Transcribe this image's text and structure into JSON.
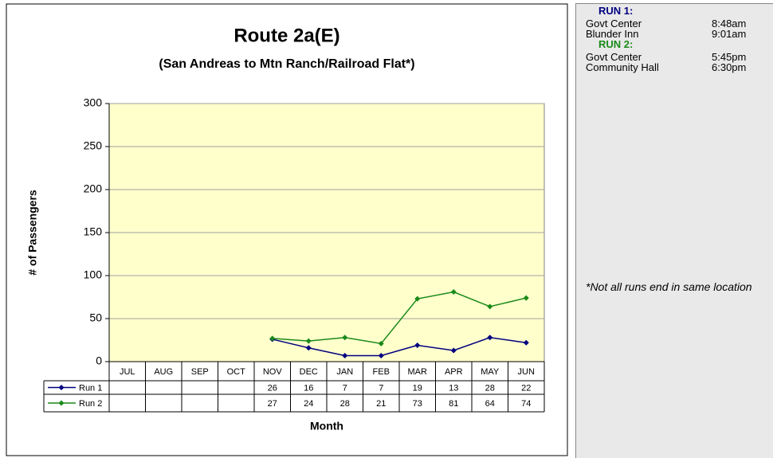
{
  "chart_data": {
    "type": "line",
    "title": "Route 2a(E)",
    "subtitle": "(San Andreas to Mtn Ranch/Railroad Flat*)",
    "y_label": "# of Passengers",
    "x_label": "Month",
    "categories": [
      "JUL",
      "AUG",
      "SEP",
      "OCT",
      "NOV",
      "DEC",
      "JAN",
      "FEB",
      "MAR",
      "APR",
      "MAY",
      "JUN"
    ],
    "series": [
      {
        "name": "Run 1",
        "color": "#000080",
        "values": [
          null,
          null,
          null,
          null,
          26,
          16,
          7,
          7,
          19,
          13,
          28,
          22
        ]
      },
      {
        "name": "Run 2",
        "color": "#1a8a1a",
        "values": [
          null,
          null,
          null,
          null,
          27,
          24,
          28,
          21,
          73,
          81,
          64,
          74
        ]
      }
    ],
    "ylim": [
      0,
      300
    ],
    "yticks": [
      0,
      50,
      100,
      150,
      200,
      250,
      300
    ],
    "grid": true,
    "plot_background": "#ffffcc",
    "data_table": true
  },
  "sidebar": {
    "runs": [
      {
        "label": "RUN 1:",
        "color": "#000080",
        "stops": [
          [
            "Govt Center",
            "8:48am"
          ],
          [
            "Blunder Inn",
            "9:01am"
          ]
        ]
      },
      {
        "label": "RUN 2:",
        "color": "#1a8a1a",
        "stops": [
          [
            "Govt Center",
            "5:45pm"
          ],
          [
            "Community Hall",
            "6:30pm"
          ]
        ]
      }
    ],
    "note": "*Not all runs end in same location"
  }
}
